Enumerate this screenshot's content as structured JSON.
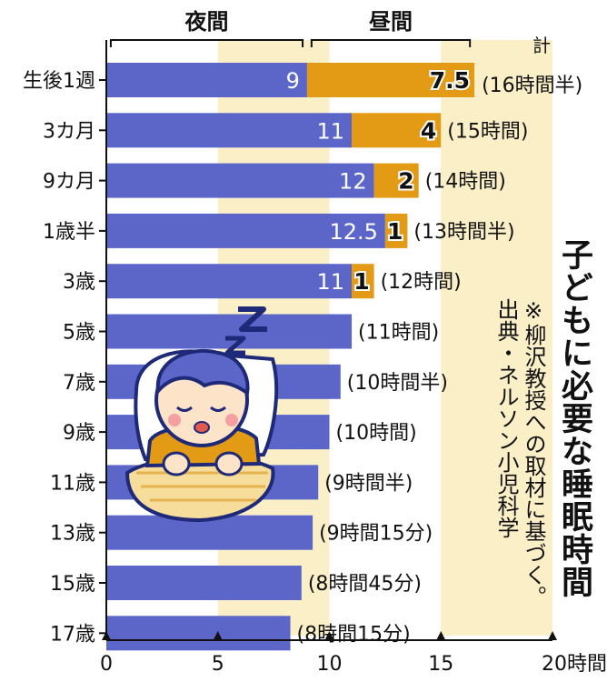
{
  "title": "子どもに必要な睡眠時間",
  "note_line1": "※柳沢教授への取材に基づく。",
  "note_line2": "出典・ネルソン小児科学",
  "colors": {
    "night": "#5b66c8",
    "day": "#e39b16",
    "band": "#fbefc7",
    "text": "#111111",
    "axis": "#111111"
  },
  "chart_data": {
    "type": "bar",
    "stacked": true,
    "orientation": "horizontal",
    "categories": [
      "生後1週",
      "3カ月",
      "9カ月",
      "1歳半",
      "3歳",
      "5歳",
      "7歳",
      "9歳",
      "11歳",
      "13歳",
      "15歳",
      "17歳"
    ],
    "series": [
      {
        "name": "夜間",
        "values": [
          9,
          11,
          12,
          12.5,
          11,
          11,
          10.5,
          10,
          9.5,
          9.25,
          8.75,
          8.25
        ]
      },
      {
        "name": "昼間",
        "values": [
          7.5,
          4,
          2,
          1,
          1,
          0,
          0,
          0,
          0,
          0,
          0,
          0
        ]
      }
    ],
    "night_labels": [
      "9",
      "11",
      "12",
      "12.5",
      "11",
      "",
      "",
      "",
      "",
      "",
      "",
      ""
    ],
    "day_labels": [
      "7.5",
      "4",
      "2",
      "1",
      "1",
      "",
      "",
      "",
      "",
      "",
      "",
      ""
    ],
    "totals": [
      "(16時間半)",
      "(15時間)",
      "(14時間)",
      "(13時間半)",
      "(12時間)",
      "(11時間)",
      "(10時間半)",
      "(10時間)",
      "(9時間半)",
      "(9時間15分)",
      "(8時間45分)",
      "(8時間15分)"
    ],
    "total_prefix": "計",
    "xlim": [
      0,
      20
    ],
    "x_ticks": [
      "0",
      "5",
      "10",
      "15",
      "20時間"
    ],
    "bands": [
      [
        5,
        10
      ],
      [
        15,
        20
      ]
    ],
    "legend_night": "夜間",
    "legend_day": "昼間"
  }
}
